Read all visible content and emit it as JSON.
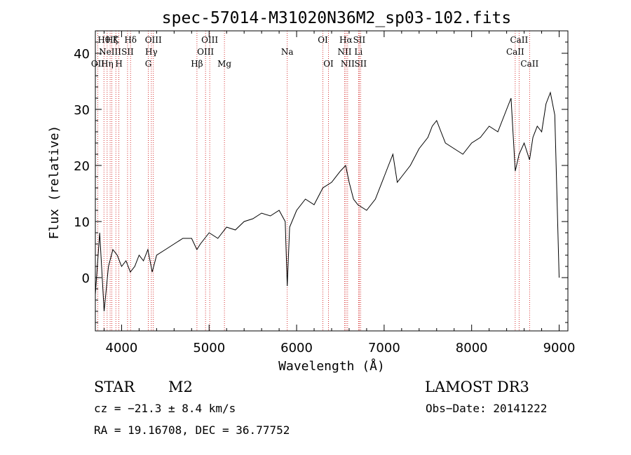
{
  "chart_data": {
    "type": "line",
    "title": "spec-57014-M31020N36M2_sp03-102.fits",
    "xlabel": "Wavelength (Å)",
    "ylabel": "Flux (relative)",
    "xlim": [
      3700,
      9100
    ],
    "ylim": [
      -9.5,
      44
    ],
    "xticks": [
      4000,
      5000,
      6000,
      7000,
      8000,
      9000
    ],
    "yticks": [
      0,
      10,
      20,
      30,
      40
    ],
    "series": [
      {
        "name": "spectrum",
        "x": [
          3700,
          3750,
          3800,
          3850,
          3900,
          3950,
          4000,
          4050,
          4100,
          4150,
          4200,
          4250,
          4300,
          4350,
          4400,
          4500,
          4600,
          4700,
          4800,
          4860,
          4900,
          5000,
          5100,
          5200,
          5300,
          5400,
          5500,
          5600,
          5700,
          5800,
          5870,
          5893,
          5920,
          6000,
          6100,
          6200,
          6300,
          6400,
          6500,
          6560,
          6600,
          6650,
          6700,
          6800,
          6900,
          7000,
          7050,
          7100,
          7150,
          7200,
          7300,
          7400,
          7500,
          7550,
          7600,
          7650,
          7700,
          7800,
          7900,
          8000,
          8100,
          8200,
          8300,
          8400,
          8450,
          8498,
          8542,
          8600,
          8662,
          8700,
          8750,
          8800,
          8850,
          8900,
          8950,
          9000
        ],
        "y": [
          -3,
          8,
          -6,
          2,
          5,
          4,
          2,
          3,
          1,
          2,
          4,
          3,
          5,
          1,
          4,
          5,
          6,
          7,
          7,
          5,
          6,
          8,
          7,
          9,
          8.5,
          10,
          10.5,
          11.5,
          11,
          12,
          10,
          -1.5,
          9,
          12,
          14,
          13,
          16,
          17,
          19,
          20,
          17,
          14,
          13,
          12,
          14,
          18,
          20,
          22,
          17,
          18,
          20,
          23,
          25,
          27,
          28,
          26,
          24,
          23,
          22,
          24,
          25,
          27,
          26,
          30,
          32,
          19,
          22,
          24,
          21,
          25,
          27,
          26,
          31,
          33,
          29,
          0
        ]
      }
    ],
    "spectral_lines": [
      {
        "wave": 3728,
        "label": "OII",
        "row": 3
      },
      {
        "wave": 3798,
        "label": "Hθ",
        "row": 1
      },
      {
        "wave": 3835,
        "label": "Hη",
        "row": 3
      },
      {
        "wave": 3869,
        "label": "NeIII",
        "row": 2
      },
      {
        "wave": 3889,
        "label": "Hζ",
        "row": 1
      },
      {
        "wave": 3934,
        "label": "K",
        "row": 1
      },
      {
        "wave": 3969,
        "label": "H",
        "row": 3
      },
      {
        "wave": 4068,
        "label": "SII",
        "row": 2
      },
      {
        "wave": 4102,
        "label": "Hδ",
        "row": 1
      },
      {
        "wave": 4305,
        "label": "G",
        "row": 3
      },
      {
        "wave": 4340,
        "label": "Hγ",
        "row": 2
      },
      {
        "wave": 4363,
        "label": "OIII",
        "row": 1
      },
      {
        "wave": 4861,
        "label": "Hβ",
        "row": 3
      },
      {
        "wave": 4959,
        "label": "OIII",
        "row": 2
      },
      {
        "wave": 5007,
        "label": "OIII",
        "row": 1
      },
      {
        "wave": 5175,
        "label": "Mg",
        "row": 3
      },
      {
        "wave": 5893,
        "label": "Na",
        "row": 2
      },
      {
        "wave": 6300,
        "label": "OI",
        "row": 1
      },
      {
        "wave": 6364,
        "label": "OI",
        "row": 3
      },
      {
        "wave": 6548,
        "label": "NII",
        "row": 2
      },
      {
        "wave": 6563,
        "label": "Hα",
        "row": 1
      },
      {
        "wave": 6583,
        "label": "NII",
        "row": 3
      },
      {
        "wave": 6707,
        "label": "Li",
        "row": 2
      },
      {
        "wave": 6716,
        "label": "SII",
        "row": 1
      },
      {
        "wave": 6731,
        "label": "SII",
        "row": 3
      },
      {
        "wave": 8498,
        "label": "CaII",
        "row": 2
      },
      {
        "wave": 8542,
        "label": "CaII",
        "row": 1
      },
      {
        "wave": 8662,
        "label": "CaII",
        "row": 3
      }
    ]
  },
  "info": {
    "object_class": "STAR",
    "subclass": "M2",
    "survey": "LAMOST DR3",
    "cz": "cz = −21.3 ± 8.4 km/s",
    "obs_date": "Obs−Date: 20141222",
    "coords": "RA =  19.16708, DEC =  36.77752"
  },
  "colors": {
    "line_marker": "#cc0000",
    "spectrum": "#000000",
    "axes": "#000000"
  }
}
